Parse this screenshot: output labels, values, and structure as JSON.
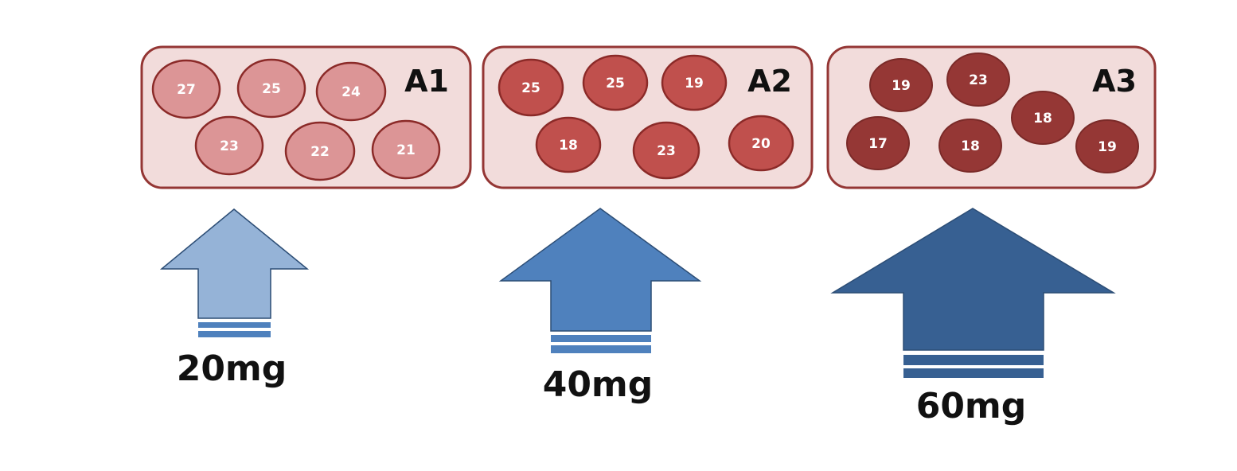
{
  "groups": [
    {
      "label": "A1",
      "values": [
        "27",
        "25",
        "24",
        "23",
        "22",
        "21"
      ],
      "dose": "20mg",
      "circle_fill": "#dc9596",
      "arrow_fill": "#95b3d7"
    },
    {
      "label": "A2",
      "values": [
        "25",
        "25",
        "19",
        "18",
        "23",
        "20"
      ],
      "dose": "40mg",
      "circle_fill": "#c0504d",
      "arrow_fill": "#4f81bd"
    },
    {
      "label": "A3",
      "values": [
        "19",
        "23",
        "18",
        "17",
        "18",
        "19"
      ],
      "dose": "60mg",
      "circle_fill": "#953735",
      "arrow_fill": "#376092"
    }
  ],
  "colors": {
    "box_fill": "#f2dcdb",
    "box_stroke": "#943634",
    "circle_stroke": "#8b2a28",
    "arrow_stroke": "#2c4d75"
  }
}
